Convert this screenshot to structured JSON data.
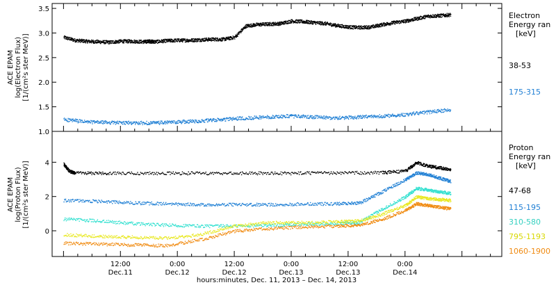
{
  "chart_data": [
    {
      "type": "scatter",
      "ylabel_lines": [
        "ACE EPAM",
        "log(Electron Flux)",
        "[1/(cm²s ster MeV)]"
      ],
      "ylim": [
        1.0,
        3.6
      ],
      "yticks": [
        1.0,
        1.5,
        2.0,
        2.5,
        3.0,
        3.5
      ],
      "ytick_labels": [
        "1.0",
        "1.5",
        "2.0",
        "2.5",
        "3.0",
        "3.5"
      ],
      "legend_title_lines": [
        "Electron",
        "Energy ran",
        "[keV]"
      ],
      "series": [
        {
          "name": "38-53",
          "color": "#000000",
          "x": [
            0.0,
            0.1,
            0.2,
            0.3,
            0.4,
            0.5,
            0.6,
            0.7,
            0.75,
            0.8,
            0.9,
            1.0,
            1.1,
            1.2,
            1.3,
            1.4,
            1.5,
            1.6,
            1.7,
            1.8,
            1.9,
            2.0,
            2.1,
            2.2,
            2.3,
            2.4,
            2.5,
            2.6,
            2.7,
            2.8,
            2.9,
            3.0,
            3.1,
            3.2,
            3.3,
            3.4
          ],
          "y": [
            2.92,
            2.86,
            2.84,
            2.83,
            2.82,
            2.84,
            2.84,
            2.83,
            2.84,
            2.83,
            2.85,
            2.86,
            2.86,
            2.87,
            2.88,
            2.88,
            2.92,
            3.15,
            3.18,
            3.19,
            3.2,
            3.25,
            3.24,
            3.22,
            3.2,
            3.16,
            3.13,
            3.12,
            3.13,
            3.18,
            3.22,
            3.25,
            3.3,
            3.35,
            3.36,
            3.38
          ]
        },
        {
          "name": "175-315",
          "color": "#1f7fd4",
          "x": [
            0.0,
            0.2,
            0.4,
            0.6,
            0.8,
            1.0,
            1.2,
            1.4,
            1.6,
            1.8,
            2.0,
            2.2,
            2.4,
            2.6,
            2.8,
            3.0,
            3.2,
            3.4
          ],
          "y": [
            1.25,
            1.2,
            1.19,
            1.18,
            1.18,
            1.2,
            1.22,
            1.25,
            1.28,
            1.3,
            1.32,
            1.3,
            1.28,
            1.3,
            1.32,
            1.35,
            1.4,
            1.45
          ]
        }
      ]
    },
    {
      "type": "scatter",
      "ylabel_lines": [
        "ACE EPAM",
        "log(Proton Flux)",
        "[1/(cm²s ster MeV)]"
      ],
      "ylim": [
        -1.5,
        5.8
      ],
      "yticks": [
        0,
        2,
        4
      ],
      "ytick_labels": [
        "0",
        "2",
        "4"
      ],
      "legend_title_lines": [
        "Proton",
        "Energy ran",
        "[keV]"
      ],
      "series": [
        {
          "name": "47-68",
          "color": "#000000",
          "x": [
            0.0,
            0.05,
            0.1,
            0.4,
            0.8,
            1.2,
            1.6,
            2.0,
            2.4,
            2.8,
            3.0,
            3.1,
            3.2,
            3.3,
            3.4
          ],
          "y": [
            3.9,
            3.5,
            3.4,
            3.38,
            3.38,
            3.38,
            3.38,
            3.38,
            3.4,
            3.42,
            3.5,
            4.0,
            3.8,
            3.7,
            3.6
          ]
        },
        {
          "name": "115-195",
          "color": "#1f7fd4",
          "x": [
            0.0,
            0.3,
            0.6,
            0.9,
            1.2,
            1.5,
            1.8,
            2.1,
            2.4,
            2.6,
            2.8,
            3.0,
            3.1,
            3.2,
            3.3,
            3.4
          ],
          "y": [
            1.8,
            1.75,
            1.65,
            1.6,
            1.55,
            1.55,
            1.55,
            1.58,
            1.6,
            1.65,
            2.3,
            3.0,
            3.4,
            3.3,
            3.1,
            2.9
          ]
        },
        {
          "name": "310-580",
          "color": "#33e0d0",
          "x": [
            0.0,
            0.3,
            0.6,
            0.9,
            1.2,
            1.5,
            1.8,
            2.1,
            2.4,
            2.6,
            2.8,
            3.0,
            3.1,
            3.2,
            3.3,
            3.4
          ],
          "y": [
            0.7,
            0.6,
            0.45,
            0.35,
            0.3,
            0.3,
            0.35,
            0.4,
            0.45,
            0.5,
            1.3,
            2.0,
            2.5,
            2.4,
            2.3,
            2.2
          ]
        },
        {
          "name": "795-1193",
          "color": "#e8e820",
          "x": [
            0.0,
            0.3,
            0.6,
            0.9,
            1.2,
            1.5,
            1.8,
            2.1,
            2.4,
            2.6,
            2.8,
            3.0,
            3.1,
            3.2,
            3.3,
            3.4
          ],
          "y": [
            -0.2,
            -0.3,
            -0.35,
            -0.4,
            -0.2,
            0.3,
            0.5,
            0.5,
            0.55,
            0.6,
            1.0,
            1.5,
            2.0,
            1.9,
            1.85,
            1.8
          ]
        },
        {
          "name": "1060-1900",
          "color": "#f08a10",
          "x": [
            0.0,
            0.3,
            0.6,
            0.9,
            1.2,
            1.5,
            1.8,
            2.1,
            2.4,
            2.6,
            2.8,
            3.0,
            3.1,
            3.2,
            3.3,
            3.4
          ],
          "y": [
            -0.7,
            -0.75,
            -0.8,
            -0.85,
            -0.5,
            0.0,
            0.15,
            0.25,
            0.3,
            0.35,
            0.7,
            1.2,
            1.6,
            1.5,
            1.4,
            1.3
          ]
        }
      ]
    }
  ],
  "x_axis": {
    "xlim": [
      -0.1,
      3.85
    ],
    "ticks": [
      0.0,
      0.5,
      1.0,
      1.5,
      2.0,
      2.5,
      3.0
    ],
    "tick_labels": [
      [
        "12:00",
        "Dec.11"
      ],
      [
        "0:00",
        "Dec.12"
      ],
      [
        "12:00",
        "Dec.12"
      ],
      [
        "0:00",
        "Dec.13"
      ],
      [
        "12:00",
        "Dec.13"
      ],
      [
        "0:00",
        "Dec.14"
      ]
    ],
    "label_ticks": [
      0.5,
      1.0,
      1.5,
      2.0,
      2.5,
      3.0
    ],
    "xlabel": "hours:minutes, Dec. 11, 2013 – Dec. 14, 2013"
  }
}
